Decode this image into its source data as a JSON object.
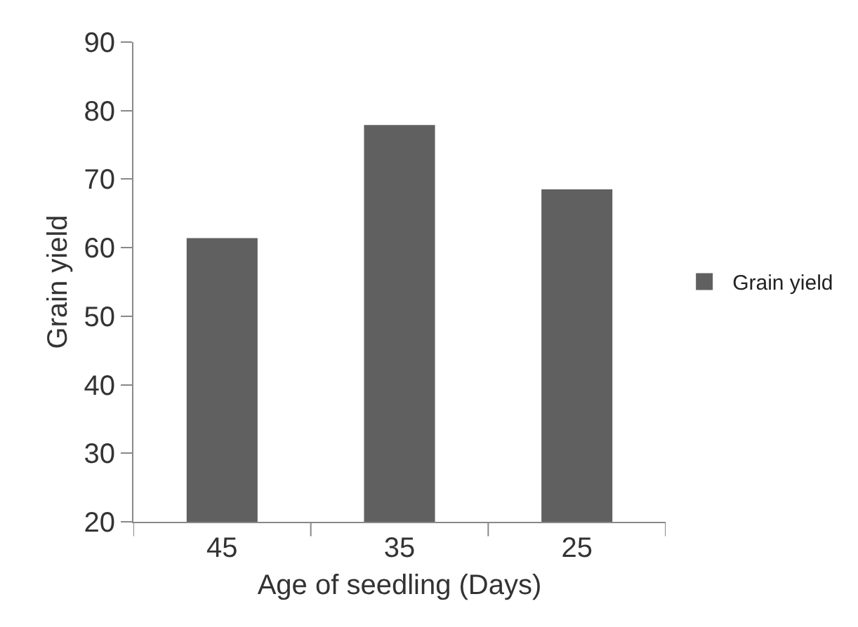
{
  "chart_data": {
    "type": "bar",
    "xlabel": "Age of seedling (Days)",
    "ylabel": "Grain yield",
    "categories": [
      "45",
      "35",
      "25"
    ],
    "series": [
      {
        "name": "Grain yield",
        "color": "#606060",
        "values": [
          61.4,
          77.9,
          68.5
        ]
      }
    ],
    "ylim": [
      20,
      90
    ],
    "yticks": [
      20,
      30,
      40,
      50,
      60,
      70,
      80,
      90
    ],
    "grid": false,
    "legend": "right"
  }
}
